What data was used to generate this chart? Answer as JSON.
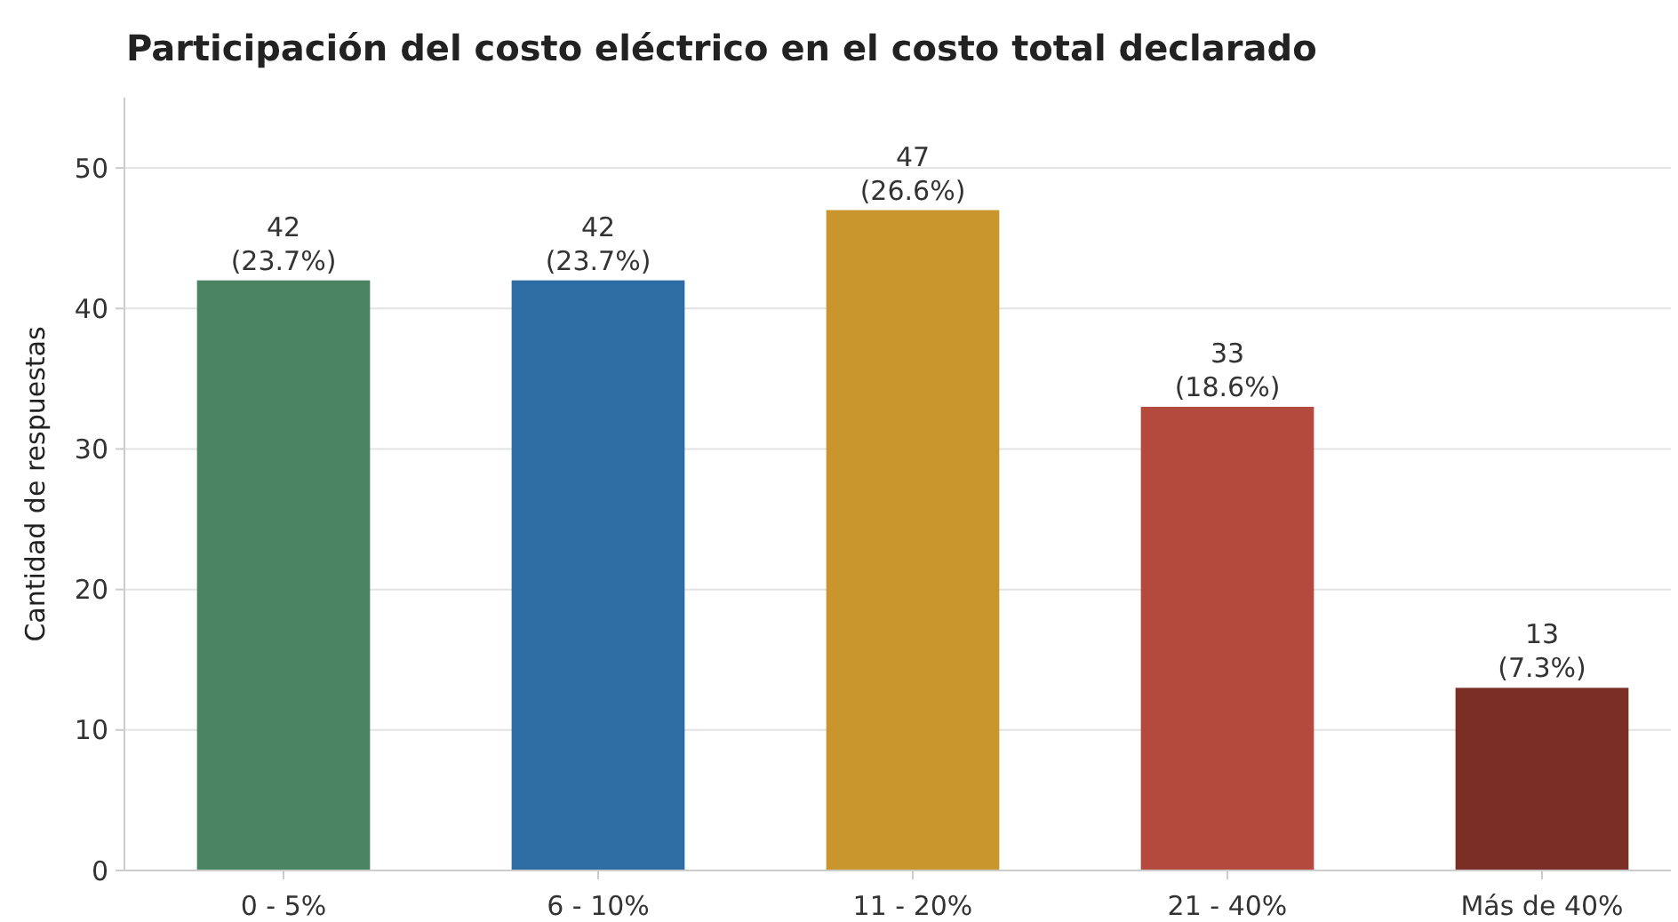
{
  "chart_data": {
    "type": "bar",
    "title": "Participación del costo eléctrico en el costo total declarado",
    "ylabel": "Cantidad de respuestas",
    "categories": [
      "0 - 5%",
      "6 - 10%",
      "11 - 20%",
      "21 - 40%",
      "Más de 40%"
    ],
    "values": [
      42,
      42,
      47,
      33,
      13
    ],
    "colors": [
      "#4a8462",
      "#2e6da4",
      "#c8962c",
      "#b4493d",
      "#7a2e25"
    ],
    "value_labels": [
      "42\n(23.7%)",
      "42\n(23.7%)",
      "47\n(26.6%)",
      "33\n(18.6%)",
      "13\n(7.3%)"
    ],
    "ylim": [
      0,
      55
    ],
    "yticks": [
      0,
      10,
      20,
      30,
      40,
      50
    ],
    "grid": "y"
  }
}
